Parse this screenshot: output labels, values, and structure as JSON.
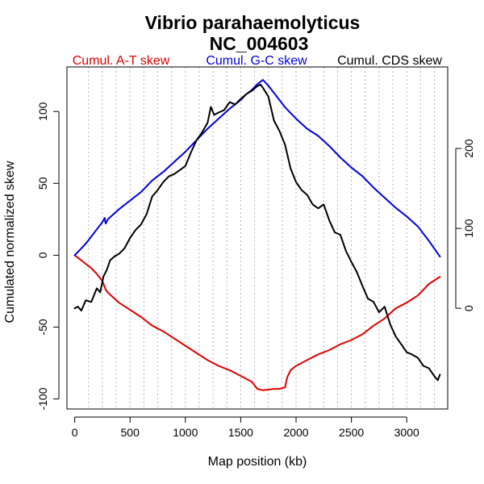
{
  "chart_data": {
    "type": "line",
    "title": "Vibrio parahaemolyticus",
    "subtitle": "NC_004603",
    "xlabel": "Map position (kb)",
    "ylabel_left": "Cumulated normalized skew",
    "ylabel_right": "",
    "xlim": [
      -70,
      3370
    ],
    "ylim_left": [
      -107,
      131
    ],
    "ylim_right": [
      -126,
      302
    ],
    "x_ticks": [
      0,
      500,
      1000,
      1500,
      2000,
      2500,
      3000
    ],
    "y_left_ticks": [
      -100,
      -50,
      0,
      50,
      100
    ],
    "y_right_ticks": [
      0,
      100,
      200
    ],
    "grid": "vertical dotted",
    "legend": "top",
    "series": [
      {
        "name": "Cumul. A-T skew",
        "color": "#e00000",
        "axis": "left",
        "x": [
          0,
          50,
          100,
          150,
          200,
          250,
          280,
          300,
          400,
          500,
          600,
          700,
          750,
          800,
          900,
          1000,
          1100,
          1200,
          1300,
          1400,
          1500,
          1600,
          1650,
          1700,
          1800,
          1850,
          1900,
          1920,
          1950,
          2000,
          2100,
          2200,
          2300,
          2400,
          2500,
          2600,
          2700,
          2800,
          2900,
          3000,
          3100,
          3200,
          3300
        ],
        "values": [
          0,
          -3,
          -6,
          -9,
          -13,
          -18,
          -24,
          -26,
          -33,
          -38,
          -43,
          -49,
          -51,
          -53,
          -58,
          -63,
          -68,
          -73,
          -77,
          -80,
          -84,
          -88,
          -93,
          -94,
          -93,
          -93,
          -92,
          -85,
          -80,
          -77,
          -73,
          -69,
          -66,
          -62,
          -59,
          -55,
          -49,
          -44,
          -37,
          -33,
          -28,
          -20,
          -15
        ]
      },
      {
        "name": "Cumul. G-C skew",
        "color": "#0000e0",
        "axis": "left",
        "x": [
          0,
          50,
          100,
          150,
          200,
          250,
          270,
          280,
          300,
          400,
          500,
          600,
          700,
          800,
          900,
          1000,
          1100,
          1200,
          1300,
          1400,
          1500,
          1550,
          1600,
          1650,
          1700,
          1750,
          1800,
          1900,
          2000,
          2100,
          2200,
          2300,
          2400,
          2500,
          2600,
          2700,
          2800,
          2900,
          3000,
          3100,
          3200,
          3300
        ],
        "values": [
          0,
          4,
          8,
          13,
          18,
          23,
          26,
          22,
          25,
          32,
          38,
          44,
          52,
          58,
          65,
          72,
          80,
          88,
          95,
          102,
          108,
          112,
          115,
          119,
          122,
          118,
          113,
          103,
          95,
          88,
          83,
          76,
          68,
          61,
          55,
          47,
          40,
          33,
          27,
          20,
          10,
          -1
        ]
      },
      {
        "name": "Cumul. CDS skew",
        "color": "#000000",
        "axis": "right",
        "x": [
          0,
          30,
          60,
          100,
          150,
          200,
          230,
          260,
          290,
          320,
          360,
          400,
          450,
          500,
          550,
          600,
          650,
          700,
          750,
          800,
          850,
          900,
          950,
          1000,
          1050,
          1100,
          1150,
          1200,
          1230,
          1260,
          1300,
          1350,
          1400,
          1450,
          1500,
          1550,
          1600,
          1650,
          1680,
          1700,
          1750,
          1800,
          1850,
          1900,
          1950,
          2000,
          2050,
          2100,
          2150,
          2200,
          2250,
          2300,
          2350,
          2400,
          2450,
          2500,
          2550,
          2600,
          2650,
          2700,
          2750,
          2800,
          2850,
          2900,
          2950,
          3000,
          3050,
          3100,
          3150,
          3200,
          3250,
          3280,
          3300
        ],
        "values": [
          0,
          2,
          -3,
          10,
          8,
          25,
          20,
          40,
          48,
          60,
          65,
          68,
          75,
          88,
          98,
          105,
          118,
          140,
          148,
          158,
          165,
          168,
          173,
          178,
          195,
          210,
          220,
          232,
          252,
          242,
          245,
          248,
          258,
          255,
          262,
          268,
          272,
          278,
          280,
          276,
          265,
          235,
          222,
          205,
          175,
          158,
          148,
          142,
          130,
          125,
          130,
          110,
          95,
          92,
          72,
          58,
          45,
          28,
          12,
          8,
          -5,
          2,
          -20,
          -35,
          -45,
          -55,
          -58,
          -62,
          -72,
          -75,
          -85,
          -90,
          -83
        ]
      }
    ]
  }
}
